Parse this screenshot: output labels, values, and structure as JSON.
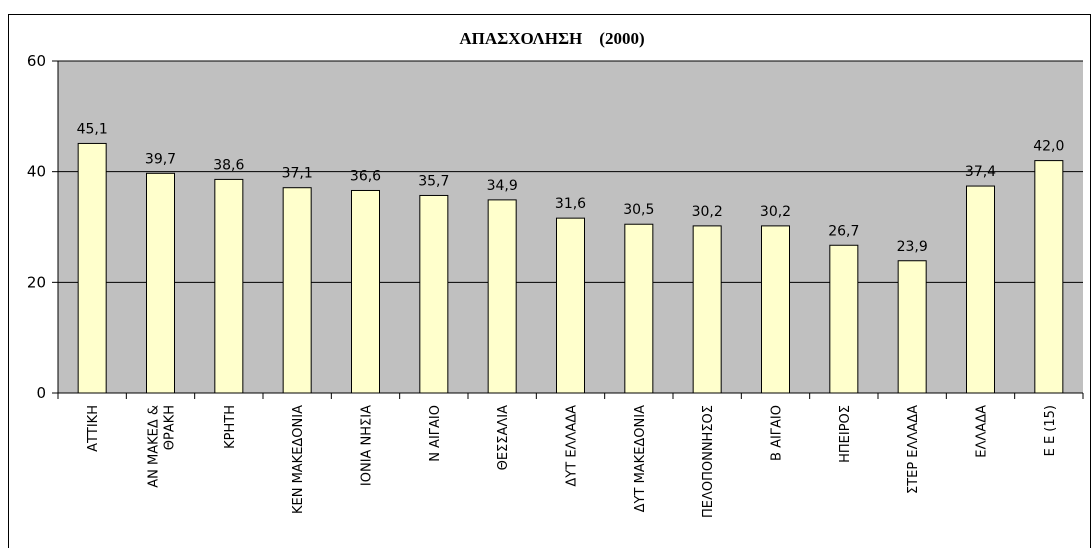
{
  "chart_data": {
    "type": "bar",
    "title": "ΑΠΑΣΧΟΛΗΣΗ    (2000)",
    "categories": [
      "ΑΤΤΙΚΗ",
      "ΑΝ ΜΑΚΕΔ &\nΘΡΑΚΗ",
      "ΚΡΗΤΗ",
      "ΚΕΝ ΜΑΚΕΔΟΝΙΑ",
      "ΙΟΝΙΑ ΝΗΣΙΑ",
      "Ν ΑΙΓΑΙΟ",
      "ΘΕΣΣΑΛΙΑ",
      "ΔΥΤ ΕΛΛΑΔΑ",
      "ΔΥΤ ΜΑΚΕΔΟΝΙΑ",
      "ΠΕΛΟΠΟΝΝΗΣΟΣ",
      "Β ΑΙΓΑΙΟ",
      "ΗΠΕΙΡΟΣ",
      "ΣΤΕΡ ΕΛΛΑΔΑ",
      "ΕΛΛΑΔΑ",
      "Ε Ε   (15)"
    ],
    "values": [
      45.1,
      39.7,
      38.6,
      37.1,
      36.6,
      35.7,
      34.9,
      31.6,
      30.5,
      30.2,
      30.2,
      26.7,
      23.9,
      37.4,
      42.0
    ],
    "value_labels": [
      "45,1",
      "39,7",
      "38,6",
      "37,1",
      "36,6",
      "35,7",
      "34,9",
      "31,6",
      "30,5",
      "30,2",
      "30,2",
      "26,7",
      "23,9",
      "37,4",
      "42,0"
    ],
    "color": "#ffffcc",
    "ylim": [
      0,
      60
    ],
    "yticks": [
      0,
      20,
      40,
      60
    ],
    "grid": true
  }
}
